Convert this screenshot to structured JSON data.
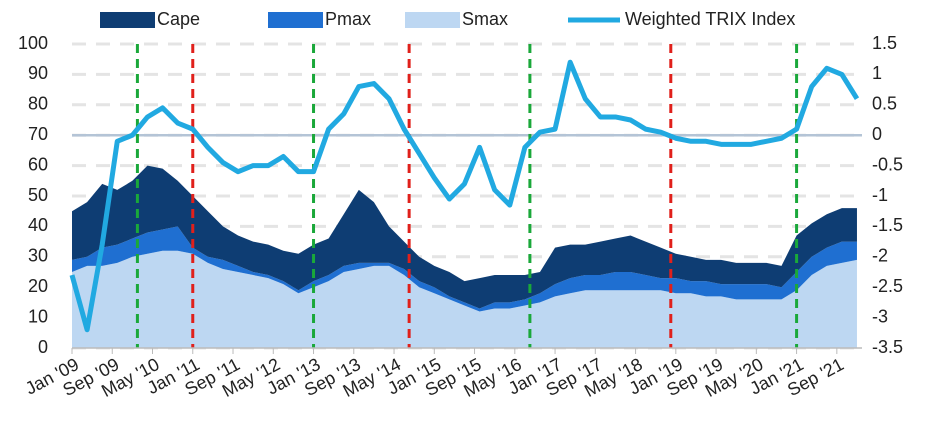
{
  "chart_data": {
    "type": "stacked_area_line",
    "x": [
      0,
      3,
      6,
      9,
      12,
      15,
      18,
      21,
      24,
      27,
      30,
      33,
      36,
      39,
      42,
      45,
      48,
      51,
      54,
      57,
      60,
      63,
      66,
      69,
      72,
      75,
      78,
      81,
      84,
      87,
      90,
      93,
      96,
      99,
      102,
      105,
      108,
      111,
      114,
      117,
      120,
      123,
      126,
      129,
      132,
      135,
      138,
      141,
      144,
      147,
      150,
      153,
      156
    ],
    "xlim": [
      0,
      157
    ],
    "xticks": [
      {
        "value": 0,
        "label": "Jan '09"
      },
      {
        "value": 8,
        "label": "Sep '09"
      },
      {
        "value": 16,
        "label": "May '10"
      },
      {
        "value": 24,
        "label": "Jan '11"
      },
      {
        "value": 32,
        "label": "Sep '11"
      },
      {
        "value": 40,
        "label": "May '12"
      },
      {
        "value": 48,
        "label": "Jan '13"
      },
      {
        "value": 56,
        "label": "Sep '13"
      },
      {
        "value": 64,
        "label": "May '14"
      },
      {
        "value": 72,
        "label": "Jan '15"
      },
      {
        "value": 80,
        "label": "Sep '15"
      },
      {
        "value": 88,
        "label": "May '16"
      },
      {
        "value": 96,
        "label": "Jan '17"
      },
      {
        "value": 104,
        "label": "Sep '17"
      },
      {
        "value": 112,
        "label": "May '18"
      },
      {
        "value": 120,
        "label": "Jan '19"
      },
      {
        "value": 128,
        "label": "Sep '19"
      },
      {
        "value": 136,
        "label": "May '20"
      },
      {
        "value": 144,
        "label": "Jan '21"
      },
      {
        "value": 152,
        "label": "Sep '21"
      }
    ],
    "ylim": [
      0,
      100
    ],
    "yticks": [
      0,
      10,
      20,
      30,
      40,
      50,
      60,
      70,
      80,
      90,
      100
    ],
    "y2lim": [
      -3.5,
      1.5
    ],
    "y2ticks": [
      -3.5,
      -3,
      -2.5,
      -2,
      -1.5,
      -1,
      -0.5,
      0,
      0.5,
      1,
      1.5
    ],
    "grid": true,
    "series": [
      {
        "name": "Smax",
        "color": "#bdd7f2",
        "values": [
          25,
          27,
          27,
          28,
          30,
          31,
          32,
          32,
          31,
          28,
          26,
          25,
          24,
          23,
          21,
          18,
          20,
          22,
          25,
          26,
          27,
          27,
          24,
          20,
          18,
          16,
          14,
          12,
          13,
          13,
          14,
          15,
          17,
          18,
          19,
          19,
          19,
          19,
          19,
          19,
          18,
          18,
          17,
          17,
          16,
          16,
          16,
          16,
          19,
          24,
          27,
          28,
          29
        ]
      },
      {
        "name": "Pmax",
        "color": "#1f6fd1",
        "values": [
          4,
          3,
          6,
          6,
          6,
          7,
          7,
          8,
          2,
          2,
          3,
          2,
          1,
          1,
          1,
          1,
          2,
          2,
          2,
          2,
          1,
          1,
          2,
          2,
          2,
          1,
          1,
          1,
          2,
          2,
          2,
          3,
          4,
          5,
          5,
          5,
          6,
          6,
          5,
          4,
          5,
          4,
          5,
          4,
          5,
          5,
          5,
          4,
          6,
          6,
          6,
          7,
          6
        ]
      },
      {
        "name": "Cape",
        "color": "#0e3d73",
        "values": [
          16,
          18,
          21,
          18,
          19,
          22,
          20,
          15,
          17,
          15,
          11,
          10,
          10,
          10,
          10,
          12,
          12,
          12,
          17,
          24,
          20,
          12,
          9,
          8,
          7,
          8,
          7,
          10,
          9,
          9,
          8,
          7,
          12,
          11,
          10,
          11,
          11,
          12,
          11,
          10,
          8,
          8,
          7,
          8,
          7,
          7,
          7,
          7,
          12,
          11,
          11,
          11,
          11
        ]
      },
      {
        "name": "Weighted TRIX Index",
        "color": "#21a9e1",
        "axis": "y2",
        "values": [
          -2.3,
          -3.2,
          -1.8,
          -0.1,
          0,
          0.3,
          0.45,
          0.2,
          0.1,
          -0.2,
          -0.45,
          -0.6,
          -0.5,
          -0.5,
          -0.35,
          -0.6,
          -0.6,
          0.1,
          0.35,
          0.8,
          0.85,
          0.6,
          0.1,
          -0.3,
          -0.7,
          -1.05,
          -0.8,
          -0.2,
          -0.9,
          -1.15,
          -0.2,
          0.05,
          0.1,
          1.2,
          0.6,
          0.3,
          0.3,
          0.25,
          0.1,
          0.05,
          -0.05,
          -0.1,
          -0.1,
          -0.15,
          -0.15,
          -0.15,
          -0.1,
          -0.05,
          0.1,
          0.8,
          1.1,
          1.0,
          0.6
        ]
      }
    ],
    "legend_order": [
      2,
      1,
      0,
      3
    ],
    "reference_line": {
      "axis": "y2",
      "value": 0,
      "color": "#b4c4d6"
    },
    "vlines": [
      {
        "x": 13,
        "color": "#1aa83a"
      },
      {
        "x": 24,
        "color": "#e0201b"
      },
      {
        "x": 48,
        "color": "#1aa83a"
      },
      {
        "x": 67,
        "color": "#e0201b"
      },
      {
        "x": 91,
        "color": "#1aa83a"
      },
      {
        "x": 119,
        "color": "#e0201b"
      },
      {
        "x": 144,
        "color": "#1aa83a"
      }
    ]
  }
}
